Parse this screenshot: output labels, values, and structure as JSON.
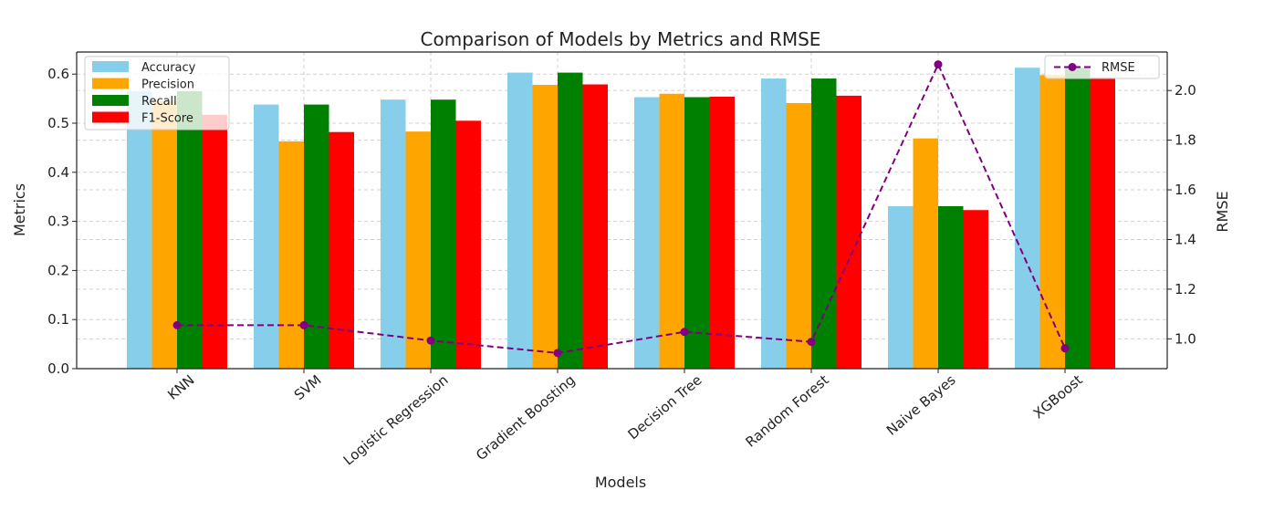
{
  "chart_data": {
    "type": "bar",
    "title": "Comparison of Models by Metrics and RMSE",
    "xlabel": "Models",
    "ylabel": "Metrics",
    "y2label": "RMSE",
    "ylim": [
      0.0,
      0.645
    ],
    "y2lim": [
      0.88,
      2.155
    ],
    "yticks": [
      "0.0",
      "0.1",
      "0.2",
      "0.3",
      "0.4",
      "0.5",
      "0.6"
    ],
    "y2ticks": [
      "1.0",
      "1.2",
      "1.4",
      "1.6",
      "1.8",
      "2.0"
    ],
    "grid": true,
    "categories": [
      "KNN",
      "SVM",
      "Logistic Regression",
      "Gradient Boosting",
      "Decision Tree",
      "Random Forest",
      "Naive Bayes",
      "XGBoost"
    ],
    "series": [
      {
        "name": "Accuracy",
        "color": "#87CEEB",
        "values": [
          0.565,
          0.538,
          0.548,
          0.603,
          0.553,
          0.591,
          0.331,
          0.613
        ]
      },
      {
        "name": "Precision",
        "color": "#FFA500",
        "values": [
          0.545,
          0.463,
          0.483,
          0.578,
          0.56,
          0.541,
          0.469,
          0.598
        ]
      },
      {
        "name": "Recall",
        "color": "#008000",
        "values": [
          0.565,
          0.538,
          0.548,
          0.603,
          0.553,
          0.591,
          0.331,
          0.613
        ]
      },
      {
        "name": "F1-Score",
        "color": "#FF0000",
        "values": [
          0.517,
          0.482,
          0.505,
          0.579,
          0.554,
          0.556,
          0.323,
          0.593
        ]
      }
    ],
    "line_series": {
      "name": "RMSE",
      "color": "#800080",
      "values": [
        1.055,
        1.055,
        0.993,
        0.943,
        1.028,
        0.988,
        2.105,
        0.962
      ]
    },
    "legend_left_position": "upper-left",
    "legend_right_position": "upper-right"
  }
}
